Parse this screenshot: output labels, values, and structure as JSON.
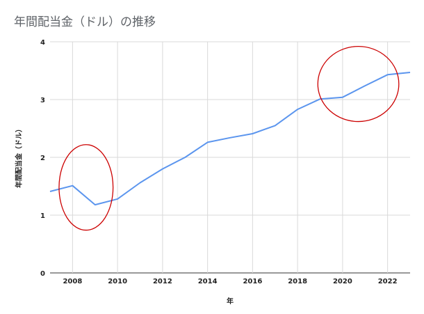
{
  "chart_data": {
    "type": "line",
    "title": "年間配当金（ドル）の推移",
    "xlabel": "年",
    "ylabel": "年間配当金（ドル）",
    "x": [
      2007,
      2008,
      2009,
      2010,
      2011,
      2012,
      2013,
      2014,
      2015,
      2016,
      2017,
      2018,
      2019,
      2020,
      2021,
      2022,
      2023
    ],
    "series": [
      {
        "values": [
          1.41,
          1.51,
          1.18,
          1.28,
          1.56,
          1.8,
          2.0,
          2.26,
          2.34,
          2.41,
          2.55,
          2.83,
          3.01,
          3.04,
          3.24,
          3.43,
          3.47
        ]
      }
    ],
    "x_ticks": [
      2008,
      2010,
      2012,
      2014,
      2016,
      2018,
      2020,
      2022
    ],
    "y_ticks": [
      0,
      1,
      2,
      3,
      4
    ],
    "xlim": [
      2007,
      2023
    ],
    "ylim": [
      0,
      4
    ],
    "grid": true,
    "colors": {
      "line": "#5b95ee",
      "grid": "#d9d9d9",
      "annotation": "#cc0000"
    },
    "annotations": [
      {
        "type": "ellipse",
        "cx": 2008.6,
        "cy": 1.48,
        "rx": 1.2,
        "ry": 0.74
      },
      {
        "type": "ellipse",
        "cx": 2020.7,
        "cy": 3.27,
        "rx": 1.8,
        "ry": 0.65
      }
    ]
  }
}
